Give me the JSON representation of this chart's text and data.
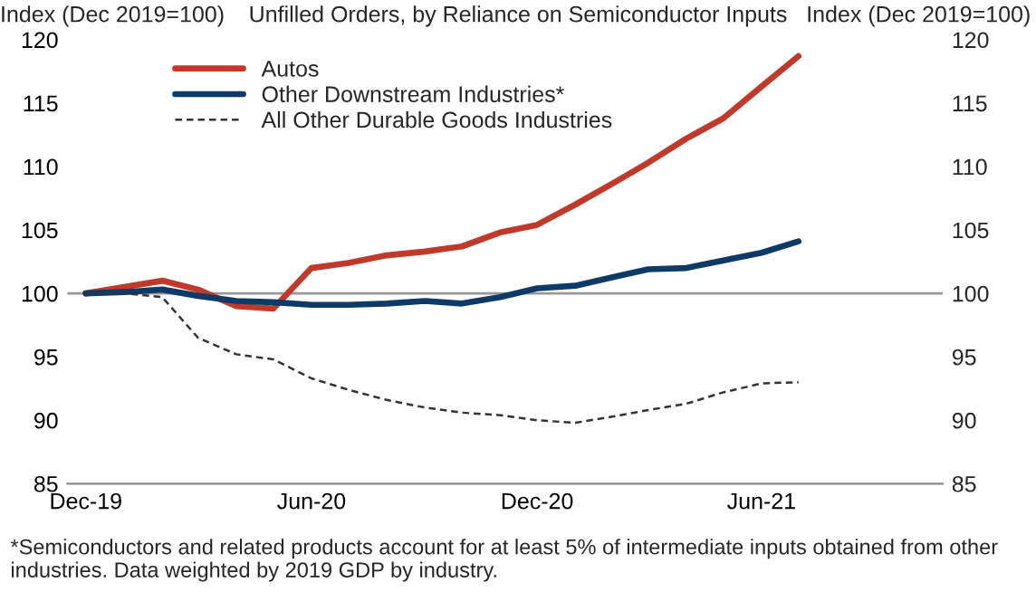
{
  "chart_data": {
    "type": "line",
    "title": "Unfilled Orders, by Reliance on Semiconductor Inputs",
    "ylabel": "Index (Dec 2019=100)",
    "y2label": "Index (Dec 2019=100)",
    "x": [
      "2019-12",
      "2020-01",
      "2020-02",
      "2020-03",
      "2020-04",
      "2020-05",
      "2020-06",
      "2020-07",
      "2020-08",
      "2020-09",
      "2020-10",
      "2020-11",
      "2020-12",
      "2021-01",
      "2021-02",
      "2021-03",
      "2021-04",
      "2021-05",
      "2021-06",
      "2021-07"
    ],
    "series": [
      {
        "name": "Autos",
        "color": "#c0392b",
        "line_style": "solid",
        "values": [
          100,
          100.5,
          101.0,
          100.3,
          99.0,
          98.8,
          102.0,
          102.4,
          103.0,
          103.3,
          103.7,
          104.8,
          105.4,
          107.0,
          108.7,
          110.3,
          112.2,
          113.8,
          116.3,
          118.7
        ]
      },
      {
        "name": "Other Downstream Industries*",
        "color": "#0d3a66",
        "line_style": "solid",
        "values": [
          100,
          100.1,
          100.3,
          99.8,
          99.4,
          99.3,
          99.1,
          99.1,
          99.2,
          99.4,
          99.2,
          99.7,
          100.4,
          100.6,
          101.3,
          101.9,
          102.0,
          102.6,
          103.2,
          104.1
        ]
      },
      {
        "name": "All Other Durable Goods Industries",
        "color": "#333333",
        "line_style": "dashed",
        "values": [
          100,
          100,
          99.7,
          96.5,
          95.2,
          94.8,
          93.3,
          92.4,
          91.6,
          91.0,
          90.6,
          90.4,
          90.0,
          89.8,
          90.3,
          90.8,
          91.3,
          92.2,
          92.9,
          93.0
        ]
      }
    ],
    "xlim": [
      "2019-11-16",
      "2021-10-26"
    ],
    "xticks": [
      {
        "value": "2019-12-01",
        "label": "Dec-19"
      },
      {
        "value": "2020-06-01",
        "label": "Jun-20"
      },
      {
        "value": "2020-12-01",
        "label": "Dec-20"
      },
      {
        "value": "2021-06-01",
        "label": "Jun-21"
      }
    ],
    "ylim": [
      85,
      120
    ],
    "yticks": [
      85,
      90,
      95,
      100,
      105,
      110,
      115,
      120
    ],
    "y2lim": [
      85,
      120
    ],
    "y2ticks": [
      85,
      90,
      95,
      100,
      105,
      110,
      115,
      120
    ],
    "ref_lines": [
      {
        "axis": "y",
        "value": 100,
        "color": "#999999"
      }
    ],
    "legend": "top left",
    "grid": false,
    "annotations": [
      "*Semiconductors and related products account for at least 5% of intermediate inputs obtained from other industries. Data weighted by 2019 GDP by industry."
    ]
  }
}
